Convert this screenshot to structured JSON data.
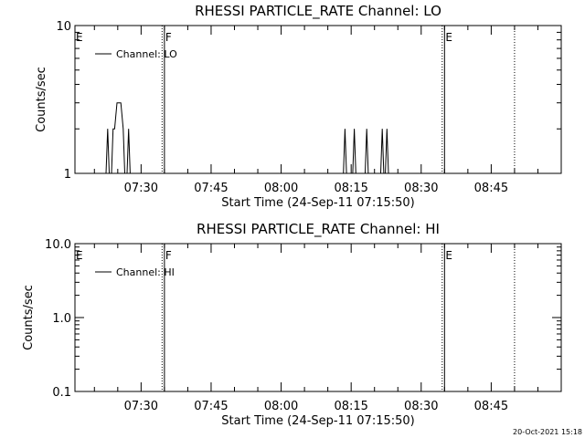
{
  "chart_data": [
    {
      "type": "line",
      "title": "RHESSI PARTICLE_RATE Channel: LO",
      "xlabel": "Start Time (24-Sep-11 07:15:50)",
      "ylabel": "Counts/sec",
      "yscale": "log",
      "ylim": [
        1,
        10
      ],
      "y_tick_labels": [
        "10",
        "1"
      ],
      "y_tick_values": [
        10,
        1
      ],
      "xlim": [
        "07:15:50",
        "09:00:00"
      ],
      "x_tick_labels": [
        "07:30",
        "07:45",
        "08:00",
        "08:15",
        "08:30",
        "08:45"
      ],
      "x_tick_values": [
        "07:30",
        "07:45",
        "08:00",
        "08:15",
        "08:30",
        "08:45"
      ],
      "legend": "top-left",
      "series": [
        {
          "name": "Channel: LO",
          "points": [
            [
              "07:22:30",
              1
            ],
            [
              "07:22:50",
              2
            ],
            [
              "07:23:10",
              1
            ],
            [
              "07:23:40",
              1
            ],
            [
              "07:24:00",
              2
            ],
            [
              "07:24:20",
              2
            ],
            [
              "07:24:50",
              3
            ],
            [
              "07:25:40",
              3
            ],
            [
              "07:26:10",
              2
            ],
            [
              "07:26:30",
              1
            ],
            [
              "07:27:00",
              1
            ],
            [
              "07:27:20",
              2
            ],
            [
              "07:27:40",
              1
            ],
            [
              "08:13:20",
              1
            ],
            [
              "08:13:40",
              2
            ],
            [
              "08:14:00",
              1
            ],
            [
              "08:15:20",
              1
            ],
            [
              "08:15:40",
              2
            ],
            [
              "08:16:00",
              1
            ],
            [
              "08:18:00",
              1
            ],
            [
              "08:18:20",
              2
            ],
            [
              "08:18:40",
              1
            ],
            [
              "08:21:20",
              1
            ],
            [
              "08:21:40",
              2
            ],
            [
              "08:22:00",
              1
            ],
            [
              "08:22:20",
              1
            ],
            [
              "08:22:40",
              2
            ],
            [
              "08:23:00",
              1
            ]
          ]
        }
      ],
      "annotations": [
        {
          "label": "E",
          "time": "07:15:50"
        },
        {
          "label": "F",
          "time": "07:35:00"
        },
        {
          "label": "E",
          "time": "08:35:00"
        }
      ],
      "vlines": [
        {
          "time": "07:35:00",
          "style": "solid"
        },
        {
          "time": "07:34:30",
          "style": "dotted"
        },
        {
          "time": "08:35:00",
          "style": "solid"
        },
        {
          "time": "08:34:30",
          "style": "dotted"
        },
        {
          "time": "08:50:00",
          "style": "dotted"
        }
      ]
    },
    {
      "type": "line",
      "title": "RHESSI PARTICLE_RATE Channel: HI",
      "xlabel": "Start Time (24-Sep-11 07:15:50)",
      "ylabel": "Counts/sec",
      "yscale": "log",
      "ylim": [
        0.1,
        10
      ],
      "y_tick_labels": [
        "10.0",
        "1.0",
        "0.1"
      ],
      "y_tick_values": [
        10,
        1,
        0.1
      ],
      "xlim": [
        "07:15:50",
        "09:00:00"
      ],
      "x_tick_labels": [
        "07:30",
        "07:45",
        "08:00",
        "08:15",
        "08:30",
        "08:45"
      ],
      "x_tick_values": [
        "07:30",
        "07:45",
        "08:00",
        "08:15",
        "08:30",
        "08:45"
      ],
      "legend": "top-left",
      "series": [
        {
          "name": "Channel: HI",
          "points": []
        }
      ],
      "annotations": [
        {
          "label": "E",
          "time": "07:15:50"
        },
        {
          "label": "F",
          "time": "07:35:00"
        },
        {
          "label": "E",
          "time": "08:35:00"
        }
      ],
      "vlines": [
        {
          "time": "07:35:00",
          "style": "solid"
        },
        {
          "time": "07:34:30",
          "style": "dotted"
        },
        {
          "time": "08:35:00",
          "style": "solid"
        },
        {
          "time": "08:34:30",
          "style": "dotted"
        },
        {
          "time": "08:50:00",
          "style": "dotted"
        }
      ]
    }
  ],
  "timestamp": "20-Oct-2021 15:18"
}
